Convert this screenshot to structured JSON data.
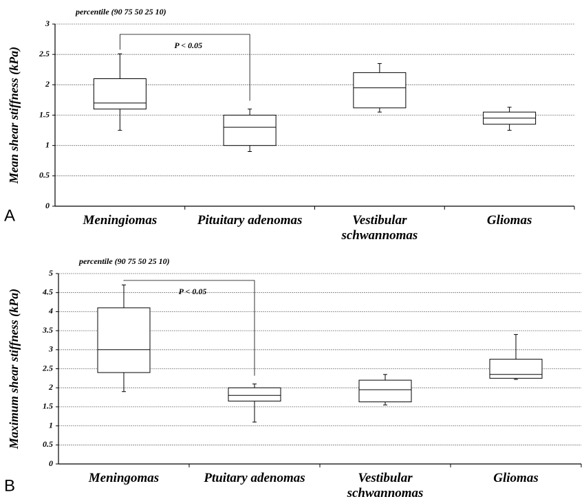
{
  "chart_data": [
    {
      "type": "box",
      "panel_label": "A",
      "annotation": "percentile (90 75 50 25 10)",
      "significance": "P < 0.05",
      "y_label": "Mean shear stiffness (kPa)",
      "categories": [
        "Meningiomas",
        "Pituitary adenomas",
        "Vestibular schwannomas",
        "Gliomas"
      ],
      "p90": [
        2.51,
        1.6,
        2.35,
        1.63
      ],
      "p75": [
        2.1,
        1.5,
        2.2,
        1.55
      ],
      "p50": [
        1.7,
        1.3,
        1.95,
        1.45
      ],
      "p25": [
        1.6,
        1.0,
        1.62,
        1.35
      ],
      "p10": [
        1.25,
        0.9,
        1.55,
        1.25
      ],
      "ylim": [
        0,
        3
      ],
      "yticks": [
        0,
        0.5,
        1,
        1.5,
        2,
        2.5,
        3
      ],
      "grid": true,
      "color": "#000000"
    },
    {
      "type": "box",
      "panel_label": "B",
      "annotation": "percentile (90 75 50 25 10)",
      "significance": "P < 0.05",
      "y_label": "Maximum shear stiffness (kPa)",
      "categories": [
        "Meningomas",
        "Ptuitary adenomas",
        "Vestibular schwannomas",
        "Gliomas"
      ],
      "p90": [
        4.7,
        2.1,
        2.35,
        3.4
      ],
      "p75": [
        4.1,
        2.0,
        2.2,
        2.75
      ],
      "p50": [
        3.0,
        1.8,
        1.95,
        2.35
      ],
      "p25": [
        2.4,
        1.65,
        1.63,
        2.25
      ],
      "p10": [
        1.9,
        1.1,
        1.55,
        2.22
      ],
      "ylim": [
        0,
        5
      ],
      "yticks": [
        0,
        0.5,
        1,
        1.5,
        2,
        2.5,
        3,
        3.5,
        4,
        4.5,
        5
      ],
      "grid": true,
      "color": "#000000"
    }
  ]
}
